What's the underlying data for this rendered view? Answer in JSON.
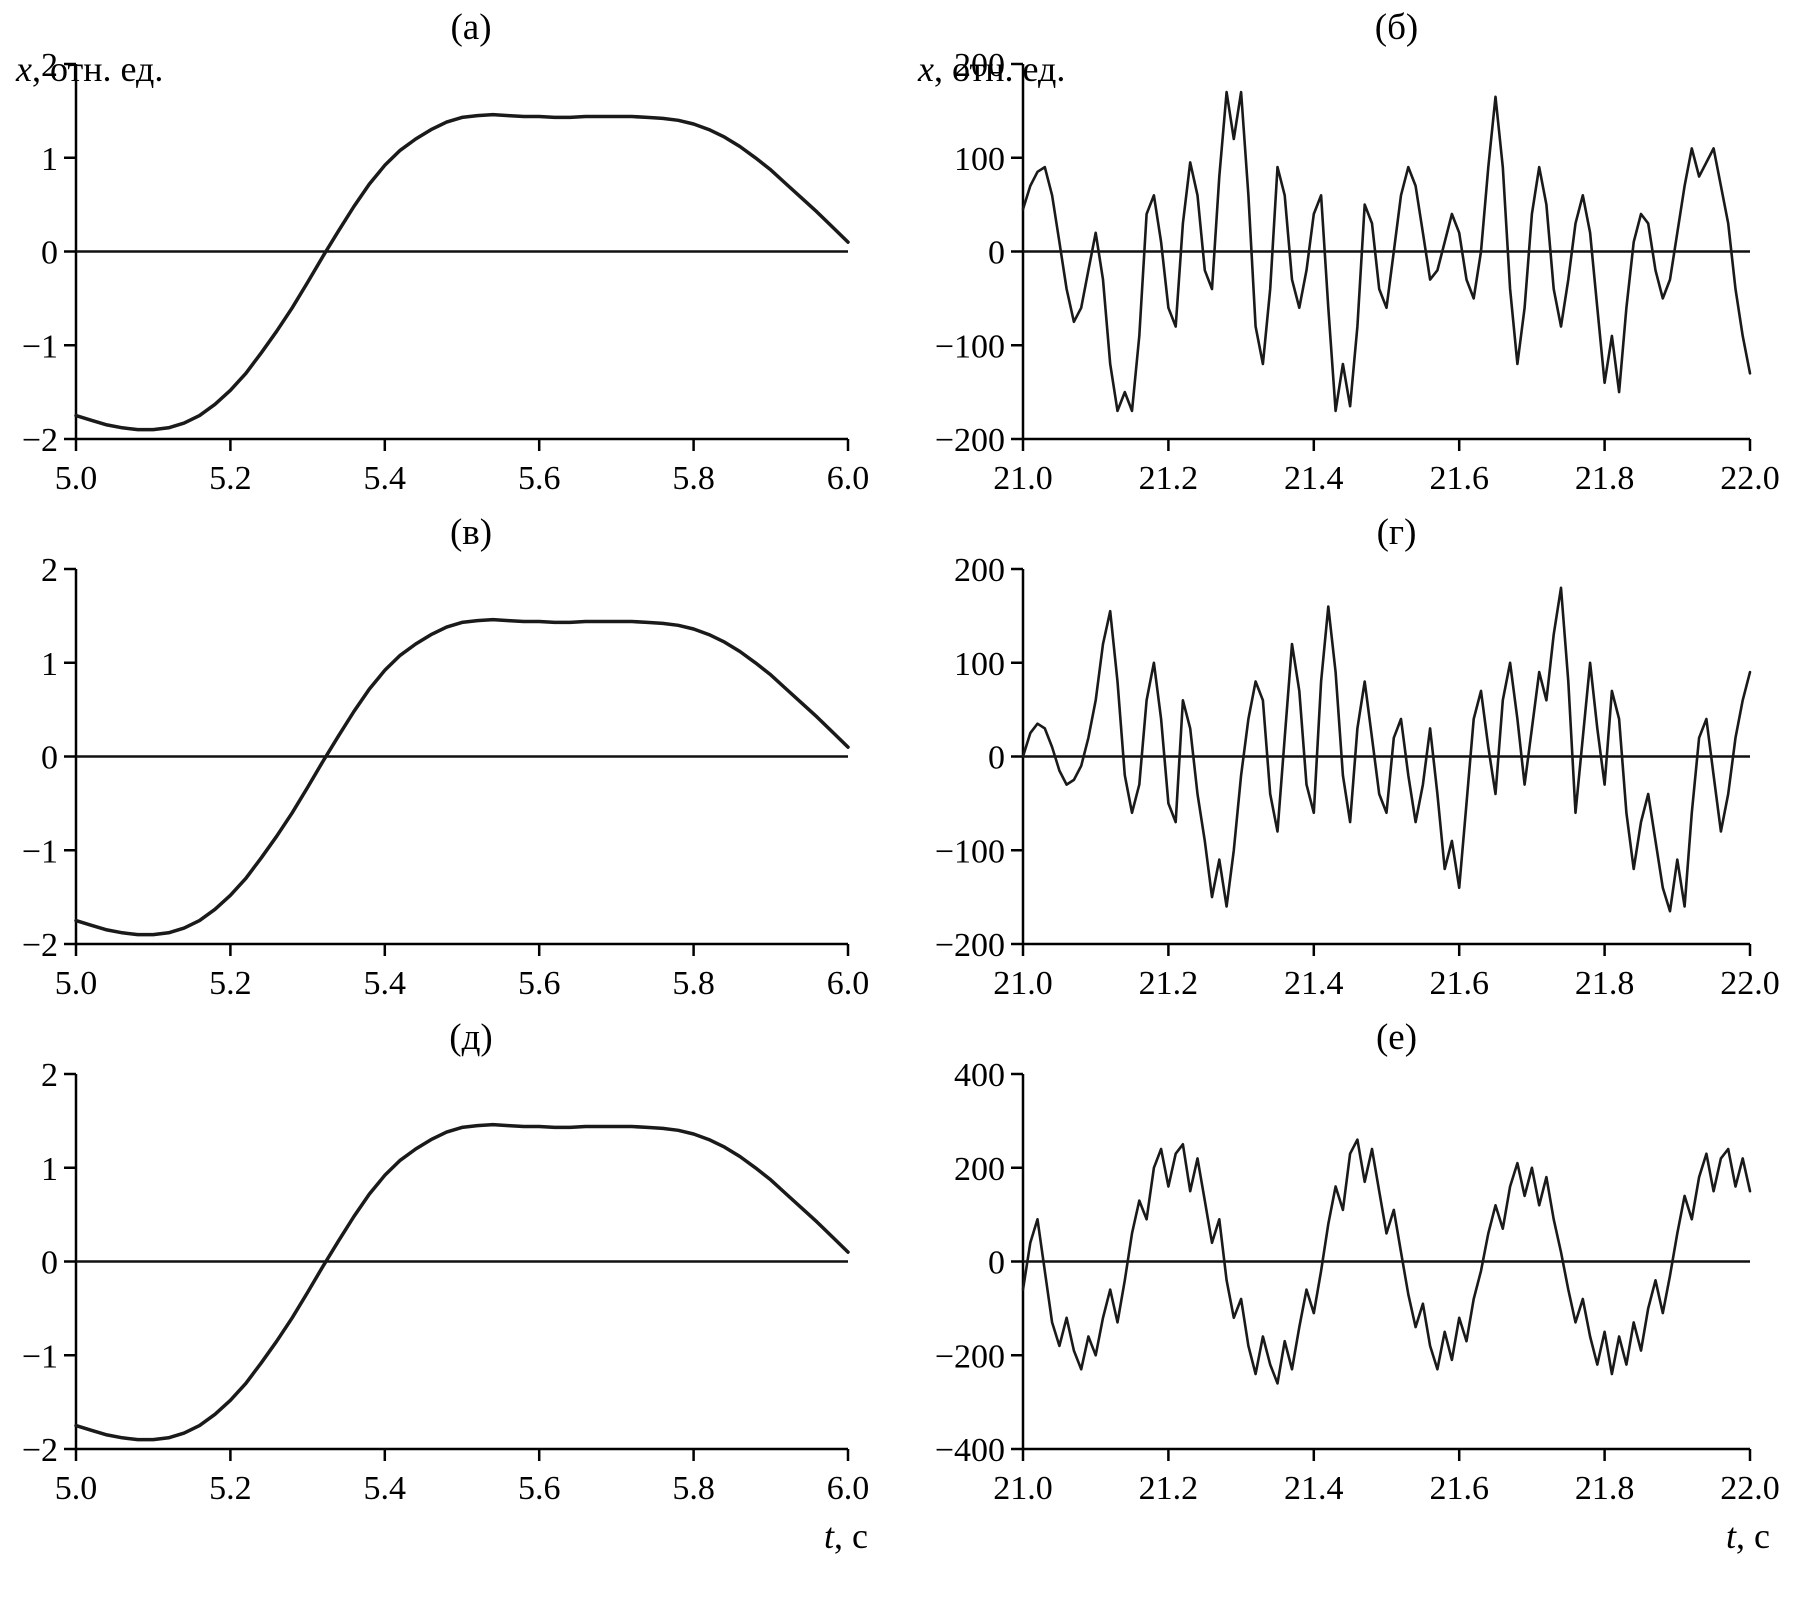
{
  "chart_data": [
    {
      "id": "a",
      "title": "(а)",
      "type": "line",
      "ylabel": {
        "var": "x",
        "rest": ", отн. ед."
      },
      "x_start": 5.0,
      "x_step": 0.02,
      "xlim": [
        5.0,
        6.0
      ],
      "ylim": [
        -2,
        2
      ],
      "xticks": [
        [
          5.0,
          "5.0"
        ],
        [
          5.2,
          "5.2"
        ],
        [
          5.4,
          "5.4"
        ],
        [
          5.6,
          "5.6"
        ],
        [
          5.8,
          "5.8"
        ],
        [
          6.0,
          "6.0"
        ]
      ],
      "yticks": [
        [
          2,
          "2"
        ],
        [
          1,
          "1"
        ],
        [
          0,
          "0"
        ],
        [
          -1,
          "−1"
        ],
        [
          -2,
          "−2"
        ]
      ],
      "y": [
        -1.75,
        -1.8,
        -1.85,
        -1.88,
        -1.9,
        -1.9,
        -1.88,
        -1.83,
        -1.75,
        -1.63,
        -1.48,
        -1.3,
        -1.08,
        -0.85,
        -0.6,
        -0.33,
        -0.05,
        0.22,
        0.48,
        0.72,
        0.92,
        1.08,
        1.2,
        1.3,
        1.38,
        1.43,
        1.45,
        1.46,
        1.45,
        1.44,
        1.44,
        1.43,
        1.43,
        1.44,
        1.44,
        1.44,
        1.44,
        1.43,
        1.42,
        1.4,
        1.36,
        1.3,
        1.22,
        1.12,
        1.0,
        0.87,
        0.72,
        0.57,
        0.42,
        0.26,
        0.1
      ]
    },
    {
      "id": "b",
      "title": "(б)",
      "type": "line",
      "ylabel": {
        "var": "x",
        "rest": ", отн. ед."
      },
      "x_start": 21.0,
      "x_step": 0.01,
      "xlim": [
        21.0,
        22.0
      ],
      "ylim": [
        -200,
        200
      ],
      "xticks": [
        [
          21.0,
          "21.0"
        ],
        [
          21.2,
          "21.2"
        ],
        [
          21.4,
          "21.4"
        ],
        [
          21.6,
          "21.6"
        ],
        [
          21.8,
          "21.8"
        ],
        [
          22.0,
          "22.0"
        ]
      ],
      "yticks": [
        [
          200,
          "200"
        ],
        [
          100,
          "100"
        ],
        [
          0,
          "0"
        ],
        [
          -100,
          "−100"
        ],
        [
          -200,
          "−200"
        ]
      ],
      "y": [
        45,
        70,
        85,
        90,
        60,
        10,
        -40,
        -75,
        -60,
        -20,
        20,
        -30,
        -120,
        -170,
        -150,
        -170,
        -90,
        40,
        60,
        10,
        -60,
        -80,
        30,
        95,
        60,
        -20,
        -40,
        80,
        170,
        120,
        170,
        60,
        -80,
        -120,
        -40,
        90,
        60,
        -30,
        -60,
        -20,
        40,
        60,
        -60,
        -170,
        -120,
        -165,
        -80,
        50,
        30,
        -40,
        -60,
        0,
        60,
        90,
        70,
        20,
        -30,
        -20,
        10,
        40,
        20,
        -30,
        -50,
        0,
        90,
        165,
        90,
        -40,
        -120,
        -60,
        40,
        90,
        50,
        -40,
        -80,
        -30,
        30,
        60,
        20,
        -60,
        -140,
        -90,
        -150,
        -60,
        10,
        40,
        30,
        -20,
        -50,
        -30,
        20,
        70,
        110,
        80,
        95,
        110,
        70,
        30,
        -40,
        -90,
        -130
      ]
    },
    {
      "id": "v",
      "title": "(в)",
      "type": "line",
      "x_start": 5.0,
      "x_step": 0.02,
      "xlim": [
        5.0,
        6.0
      ],
      "ylim": [
        -2,
        2
      ],
      "xticks": [
        [
          5.0,
          "5.0"
        ],
        [
          5.2,
          "5.2"
        ],
        [
          5.4,
          "5.4"
        ],
        [
          5.6,
          "5.6"
        ],
        [
          5.8,
          "5.8"
        ],
        [
          6.0,
          "6.0"
        ]
      ],
      "yticks": [
        [
          2,
          "2"
        ],
        [
          1,
          "1"
        ],
        [
          0,
          "0"
        ],
        [
          -1,
          "−1"
        ],
        [
          -2,
          "−2"
        ]
      ],
      "y": [
        -1.75,
        -1.8,
        -1.85,
        -1.88,
        -1.9,
        -1.9,
        -1.88,
        -1.83,
        -1.75,
        -1.63,
        -1.48,
        -1.3,
        -1.08,
        -0.85,
        -0.6,
        -0.33,
        -0.05,
        0.22,
        0.48,
        0.72,
        0.92,
        1.08,
        1.2,
        1.3,
        1.38,
        1.43,
        1.45,
        1.46,
        1.45,
        1.44,
        1.44,
        1.43,
        1.43,
        1.44,
        1.44,
        1.44,
        1.44,
        1.43,
        1.42,
        1.4,
        1.36,
        1.3,
        1.22,
        1.12,
        1.0,
        0.87,
        0.72,
        0.57,
        0.42,
        0.26,
        0.1
      ]
    },
    {
      "id": "g",
      "title": "(г)",
      "type": "line",
      "x_start": 21.0,
      "x_step": 0.01,
      "xlim": [
        21.0,
        22.0
      ],
      "ylim": [
        -200,
        200
      ],
      "xticks": [
        [
          21.0,
          "21.0"
        ],
        [
          21.2,
          "21.2"
        ],
        [
          21.4,
          "21.4"
        ],
        [
          21.6,
          "21.6"
        ],
        [
          21.8,
          "21.8"
        ],
        [
          22.0,
          "22.0"
        ]
      ],
      "yticks": [
        [
          200,
          "200"
        ],
        [
          100,
          "100"
        ],
        [
          0,
          "0"
        ],
        [
          -100,
          "−100"
        ],
        [
          -200,
          "−200"
        ]
      ],
      "y": [
        0,
        25,
        35,
        30,
        10,
        -15,
        -30,
        -25,
        -10,
        20,
        60,
        120,
        155,
        80,
        -20,
        -60,
        -30,
        60,
        100,
        40,
        -50,
        -70,
        60,
        30,
        -40,
        -90,
        -150,
        -110,
        -160,
        -100,
        -20,
        40,
        80,
        60,
        -40,
        -80,
        20,
        120,
        70,
        -30,
        -60,
        80,
        160,
        90,
        -20,
        -70,
        30,
        80,
        20,
        -40,
        -60,
        20,
        40,
        -20,
        -70,
        -30,
        30,
        -40,
        -120,
        -90,
        -140,
        -50,
        40,
        70,
        10,
        -40,
        60,
        100,
        40,
        -30,
        30,
        90,
        60,
        130,
        180,
        80,
        -60,
        20,
        100,
        30,
        -30,
        70,
        40,
        -60,
        -120,
        -70,
        -40,
        -90,
        -140,
        -165,
        -110,
        -160,
        -60,
        20,
        40,
        -20,
        -80,
        -40,
        20,
        60,
        90
      ]
    },
    {
      "id": "d",
      "title": "(д)",
      "type": "line",
      "xlabel": {
        "var": "t",
        "rest": ", с"
      },
      "x_start": 5.0,
      "x_step": 0.02,
      "xlim": [
        5.0,
        6.0
      ],
      "ylim": [
        -2,
        2
      ],
      "xticks": [
        [
          5.0,
          "5.0"
        ],
        [
          5.2,
          "5.2"
        ],
        [
          5.4,
          "5.4"
        ],
        [
          5.6,
          "5.6"
        ],
        [
          5.8,
          "5.8"
        ],
        [
          6.0,
          "6.0"
        ]
      ],
      "yticks": [
        [
          2,
          "2"
        ],
        [
          1,
          "1"
        ],
        [
          0,
          "0"
        ],
        [
          -1,
          "−1"
        ],
        [
          -2,
          "−2"
        ]
      ],
      "y": [
        -1.75,
        -1.8,
        -1.85,
        -1.88,
        -1.9,
        -1.9,
        -1.88,
        -1.83,
        -1.75,
        -1.63,
        -1.48,
        -1.3,
        -1.08,
        -0.85,
        -0.6,
        -0.33,
        -0.05,
        0.22,
        0.48,
        0.72,
        0.92,
        1.08,
        1.2,
        1.3,
        1.38,
        1.43,
        1.45,
        1.46,
        1.45,
        1.44,
        1.44,
        1.43,
        1.43,
        1.44,
        1.44,
        1.44,
        1.44,
        1.43,
        1.42,
        1.4,
        1.36,
        1.3,
        1.22,
        1.12,
        1.0,
        0.87,
        0.72,
        0.57,
        0.42,
        0.26,
        0.1
      ]
    },
    {
      "id": "e",
      "title": "(е)",
      "type": "line",
      "xlabel": {
        "var": "t",
        "rest": ", с"
      },
      "x_start": 21.0,
      "x_step": 0.01,
      "xlim": [
        21.0,
        22.0
      ],
      "ylim": [
        -400,
        400
      ],
      "xticks": [
        [
          21.0,
          "21.0"
        ],
        [
          21.2,
          "21.2"
        ],
        [
          21.4,
          "21.4"
        ],
        [
          21.6,
          "21.6"
        ],
        [
          21.8,
          "21.8"
        ],
        [
          22.0,
          "22.0"
        ]
      ],
      "yticks": [
        [
          400,
          "400"
        ],
        [
          200,
          "200"
        ],
        [
          0,
          "0"
        ],
        [
          -200,
          "−200"
        ],
        [
          -400,
          "−400"
        ]
      ],
      "y": [
        -60,
        40,
        90,
        -20,
        -130,
        -180,
        -120,
        -190,
        -230,
        -160,
        -200,
        -120,
        -60,
        -130,
        -40,
        60,
        130,
        90,
        200,
        240,
        160,
        230,
        250,
        150,
        220,
        130,
        40,
        90,
        -40,
        -120,
        -80,
        -180,
        -240,
        -160,
        -220,
        -260,
        -170,
        -230,
        -140,
        -60,
        -110,
        -20,
        80,
        160,
        110,
        230,
        260,
        170,
        240,
        150,
        60,
        110,
        20,
        -70,
        -140,
        -90,
        -180,
        -230,
        -150,
        -210,
        -120,
        -170,
        -80,
        -20,
        60,
        120,
        70,
        160,
        210,
        140,
        200,
        120,
        180,
        90,
        20,
        -60,
        -130,
        -80,
        -160,
        -220,
        -150,
        -240,
        -160,
        -220,
        -130,
        -190,
        -100,
        -40,
        -110,
        -30,
        60,
        140,
        90,
        180,
        230,
        150,
        220,
        240,
        160,
        220,
        150
      ]
    }
  ]
}
